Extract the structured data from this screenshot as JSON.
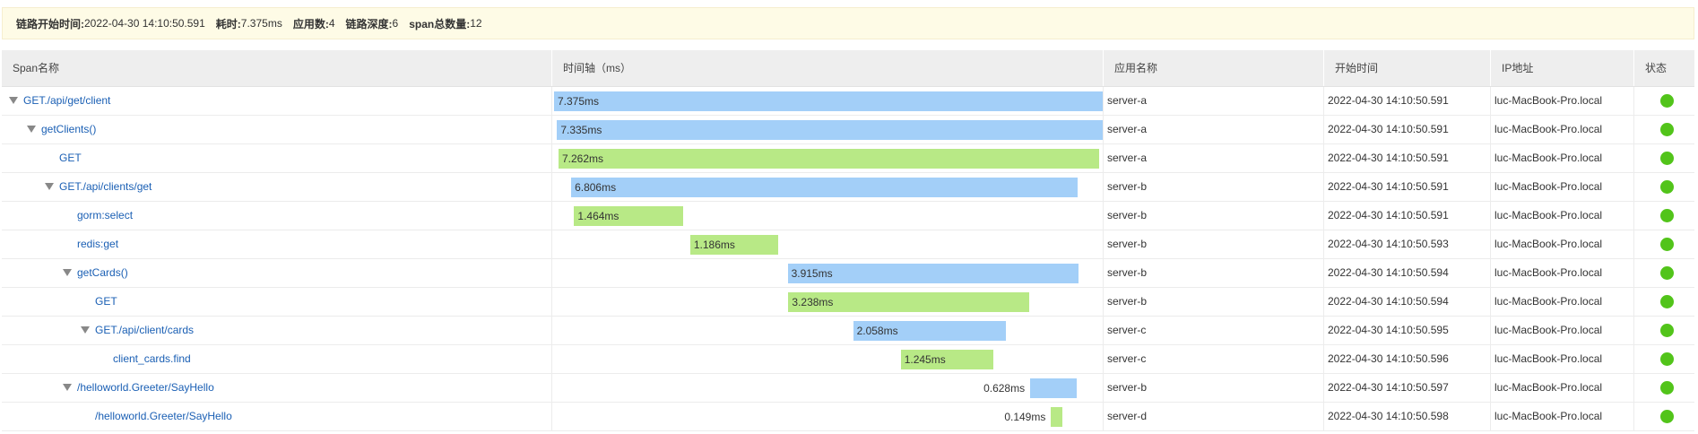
{
  "summary": {
    "start_time_label": "链路开始时间:",
    "start_time_value": "2022-04-30 14:10:50.591",
    "duration_label": "耗时:",
    "duration_value": "7.375ms",
    "app_count_label": "应用数:",
    "app_count_value": "4",
    "depth_label": "链路深度:",
    "depth_value": "6",
    "span_total_label": "span总数量:",
    "span_total_value": "12"
  },
  "columns": {
    "span_name": "Span名称",
    "timeline": "时间轴（ms）",
    "app_name": "应用名称",
    "start_time": "开始时间",
    "ip": "IP地址",
    "status": "状态"
  },
  "timeline": {
    "total_ms": 7.375
  },
  "status_color": "#52c41a",
  "rows": [
    {
      "name": "GET./api/get/client",
      "indent": 0,
      "expandable": true,
      "duration_label": "7.375ms",
      "offset_ms": 0.0,
      "duration_ms": 7.375,
      "color": "blue",
      "app": "server-a",
      "start": "2022-04-30 14:10:50.591",
      "ip": "luc-MacBook-Pro.local",
      "status": "ok"
    },
    {
      "name": "getClients()",
      "indent": 1,
      "expandable": true,
      "duration_label": "7.335ms",
      "offset_ms": 0.04,
      "duration_ms": 7.335,
      "color": "blue",
      "app": "server-a",
      "start": "2022-04-30 14:10:50.591",
      "ip": "luc-MacBook-Pro.local",
      "status": "ok"
    },
    {
      "name": "GET",
      "indent": 2,
      "expandable": false,
      "duration_label": "7.262ms",
      "offset_ms": 0.06,
      "duration_ms": 7.262,
      "color": "green",
      "app": "server-a",
      "start": "2022-04-30 14:10:50.591",
      "ip": "luc-MacBook-Pro.local",
      "status": "ok"
    },
    {
      "name": "GET./api/clients/get",
      "indent": 2,
      "expandable": true,
      "duration_label": "6.806ms",
      "offset_ms": 0.23,
      "duration_ms": 6.806,
      "color": "blue",
      "app": "server-b",
      "start": "2022-04-30 14:10:50.591",
      "ip": "luc-MacBook-Pro.local",
      "status": "ok"
    },
    {
      "name": "gorm:select",
      "indent": 3,
      "expandable": false,
      "duration_label": "1.464ms",
      "offset_ms": 0.27,
      "duration_ms": 1.464,
      "color": "green",
      "app": "server-b",
      "start": "2022-04-30 14:10:50.591",
      "ip": "luc-MacBook-Pro.local",
      "status": "ok"
    },
    {
      "name": "redis:get",
      "indent": 3,
      "expandable": false,
      "duration_label": "1.186ms",
      "offset_ms": 1.83,
      "duration_ms": 1.186,
      "color": "green",
      "app": "server-b",
      "start": "2022-04-30 14:10:50.593",
      "ip": "luc-MacBook-Pro.local",
      "status": "ok"
    },
    {
      "name": "getCards()",
      "indent": 3,
      "expandable": true,
      "duration_label": "3.915ms",
      "offset_ms": 3.14,
      "duration_ms": 3.915,
      "color": "blue",
      "app": "server-b",
      "start": "2022-04-30 14:10:50.594",
      "ip": "luc-MacBook-Pro.local",
      "status": "ok"
    },
    {
      "name": "GET",
      "indent": 4,
      "expandable": false,
      "duration_label": "3.238ms",
      "offset_ms": 3.15,
      "duration_ms": 3.238,
      "color": "green",
      "app": "server-b",
      "start": "2022-04-30 14:10:50.594",
      "ip": "luc-MacBook-Pro.local",
      "status": "ok"
    },
    {
      "name": "GET./api/client/cards",
      "indent": 4,
      "expandable": true,
      "duration_label": "2.058ms",
      "offset_ms": 4.02,
      "duration_ms": 2.058,
      "color": "blue",
      "app": "server-c",
      "start": "2022-04-30 14:10:50.595",
      "ip": "luc-MacBook-Pro.local",
      "status": "ok"
    },
    {
      "name": "client_cards.find",
      "indent": 5,
      "expandable": false,
      "duration_label": "1.245ms",
      "offset_ms": 4.66,
      "duration_ms": 1.245,
      "color": "green",
      "app": "server-c",
      "start": "2022-04-30 14:10:50.596",
      "ip": "luc-MacBook-Pro.local",
      "status": "ok"
    },
    {
      "name": "/helloworld.Greeter/SayHello",
      "indent": 3,
      "expandable": true,
      "duration_label": "0.628ms",
      "offset_ms": 6.4,
      "duration_ms": 0.628,
      "color": "blue",
      "app": "server-b",
      "start": "2022-04-30 14:10:50.597",
      "ip": "luc-MacBook-Pro.local",
      "status": "ok"
    },
    {
      "name": "/helloworld.Greeter/SayHello",
      "indent": 4,
      "expandable": false,
      "duration_label": "0.149ms",
      "offset_ms": 6.68,
      "duration_ms": 0.149,
      "color": "green",
      "app": "server-d",
      "start": "2022-04-30 14:10:50.598",
      "ip": "luc-MacBook-Pro.local",
      "status": "ok"
    }
  ]
}
